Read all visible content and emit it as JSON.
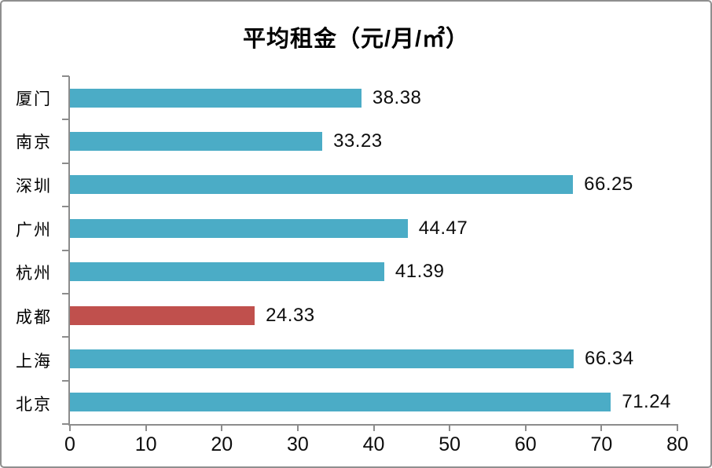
{
  "page": {
    "background": "#ffffff",
    "frame_border_color": "#8f8f8f"
  },
  "chart_data": {
    "type": "bar",
    "orientation": "horizontal",
    "title": "平均租金（元/月/㎡）",
    "categories": [
      "厦门",
      "南京",
      "深圳",
      "广州",
      "杭州",
      "成都",
      "上海",
      "北京"
    ],
    "values": [
      38.38,
      33.23,
      66.25,
      44.47,
      41.39,
      24.33,
      66.34,
      71.24
    ],
    "value_labels": [
      "38.38",
      "33.23",
      "66.25",
      "44.47",
      "41.39",
      "24.33",
      "66.34",
      "71.24"
    ],
    "bar_colors": [
      "#4BACC6",
      "#4BACC6",
      "#4BACC6",
      "#4BACC6",
      "#4BACC6",
      "#C0504D",
      "#4BACC6",
      "#4BACC6"
    ],
    "default_color": "#4BACC6",
    "highlight_category": "成都",
    "highlight_color": "#C0504D",
    "xlim": [
      0,
      80
    ],
    "x_ticks": [
      0,
      10,
      20,
      30,
      40,
      50,
      60,
      70,
      80
    ],
    "axis_color": "#8c8c8c",
    "grid": false,
    "legend": false
  }
}
